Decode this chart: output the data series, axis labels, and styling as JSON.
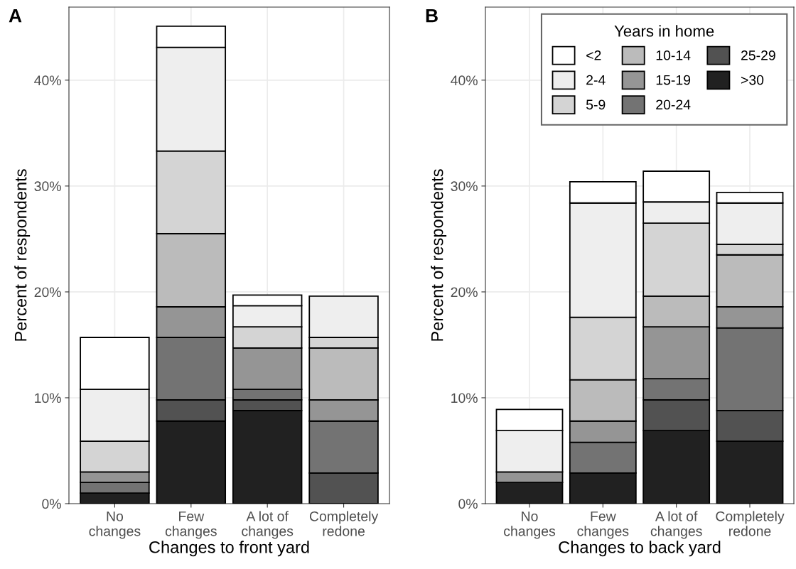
{
  "chart_data": [
    {
      "type": "bar",
      "title": "A",
      "xlabel": "Changes to front yard",
      "ylabel": "Percent of respondents",
      "stacked": true,
      "categories": [
        "No\nchanges",
        "Few\nchanges",
        "A lot of\nchanges",
        "Completely\nredone"
      ],
      "ylim": [
        0,
        46.9
      ],
      "yticks": [
        {
          "value": 0,
          "label": "0%"
        },
        {
          "value": 10,
          "label": "10%"
        },
        {
          "value": 20,
          "label": "20%"
        },
        {
          "value": 30,
          "label": "30%"
        },
        {
          "value": 40,
          "label": "40%"
        }
      ],
      "grid": true,
      "series": [
        {
          "color": "#212121",
          "values": [
            1.0,
            7.8,
            8.8,
            null
          ]
        },
        {
          "color": "#525252",
          "values": [
            null,
            2.0,
            1.0,
            2.9
          ]
        },
        {
          "color": "#737373",
          "values": [
            1.0,
            5.9,
            1.0,
            4.9
          ]
        },
        {
          "color": "#959595",
          "values": [
            1.0,
            2.9,
            3.9,
            2.0
          ]
        },
        {
          "color": "#bbbbbb",
          "values": [
            null,
            6.9,
            null,
            4.9
          ]
        },
        {
          "color": "#d4d4d4",
          "values": [
            2.9,
            7.8,
            2.0,
            1.0
          ]
        },
        {
          "color": "#eeeeee",
          "values": [
            4.9,
            9.8,
            2.0,
            3.9
          ]
        },
        {
          "color": "#ffffff",
          "values": [
            4.9,
            2.0,
            1.0,
            null
          ]
        }
      ]
    },
    {
      "type": "bar",
      "title": "B",
      "xlabel": "Changes to back yard",
      "ylabel": "Percent of respondents",
      "legend_title": "Years in home",
      "stacked": true,
      "categories": [
        "No\nchanges",
        "Few\nchanges",
        "A lot of\nchanges",
        "Completely\nredone"
      ],
      "ylim": [
        0,
        46.9
      ],
      "yticks": [
        {
          "value": 0,
          "label": "0%"
        },
        {
          "value": 10,
          "label": "10%"
        },
        {
          "value": 20,
          "label": "20%"
        },
        {
          "value": 30,
          "label": "30%"
        },
        {
          "value": 40,
          "label": "40%"
        }
      ],
      "grid": true,
      "legend": "top right",
      "series": [
        {
          "name": ">30",
          "color": "#212121",
          "values": [
            2.0,
            2.9,
            6.9,
            5.9
          ]
        },
        {
          "name": "25-29",
          "color": "#525252",
          "values": [
            null,
            null,
            2.9,
            2.9
          ]
        },
        {
          "name": "20-24",
          "color": "#737373",
          "values": [
            null,
            2.9,
            2.0,
            7.8
          ]
        },
        {
          "name": "15-19",
          "color": "#959595",
          "values": [
            1.0,
            2.0,
            4.9,
            2.0
          ]
        },
        {
          "name": "10-14",
          "color": "#bbbbbb",
          "values": [
            null,
            3.9,
            2.9,
            4.9
          ]
        },
        {
          "name": "5-9",
          "color": "#d4d4d4",
          "values": [
            null,
            5.9,
            6.9,
            1.0
          ]
        },
        {
          "name": "2-4",
          "color": "#eeeeee",
          "values": [
            3.9,
            10.8,
            2.0,
            3.9
          ]
        },
        {
          "name": "<2",
          "color": "#ffffff",
          "values": [
            2.0,
            2.0,
            2.9,
            1.0
          ]
        }
      ]
    }
  ]
}
